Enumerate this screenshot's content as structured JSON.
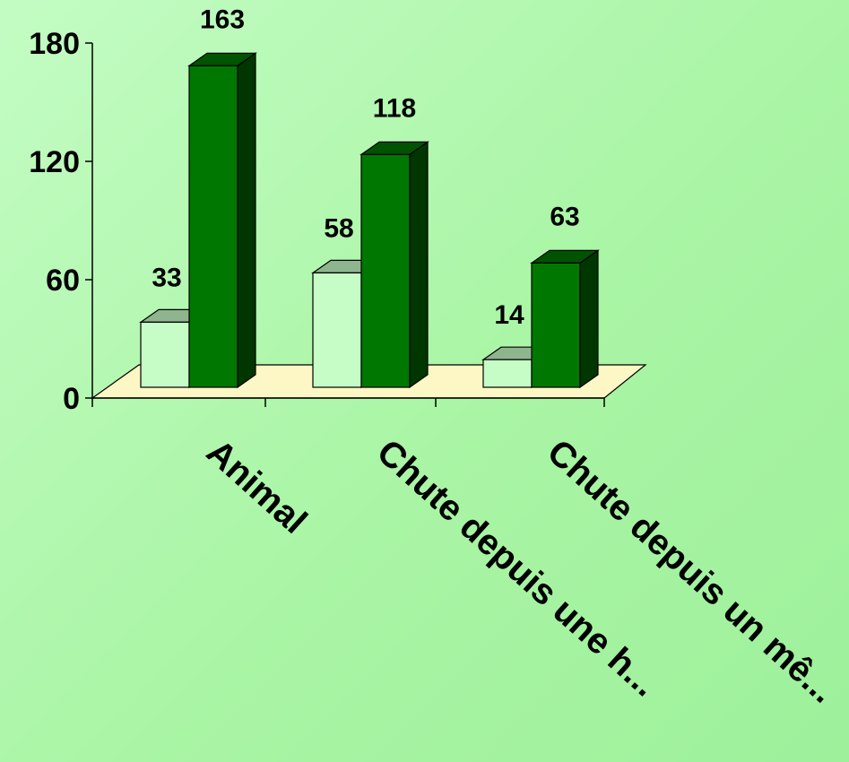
{
  "chart_data": {
    "type": "bar",
    "style": "3d-clustered-column",
    "categories": [
      "Animal",
      "Chute depuis une h...",
      "Chute depuis un mê..."
    ],
    "series": [
      {
        "values": [
          33,
          58,
          14
        ],
        "color": "#c6fcc6"
      },
      {
        "values": [
          163,
          118,
          63
        ],
        "color": "#007700"
      }
    ],
    "y_ticks": [
      0,
      60,
      120,
      180
    ],
    "ylim": [
      0,
      180
    ],
    "title": "",
    "xlabel": "",
    "ylabel": "",
    "floor_color": "#fcf7c4",
    "legend": "none",
    "grid": false
  }
}
